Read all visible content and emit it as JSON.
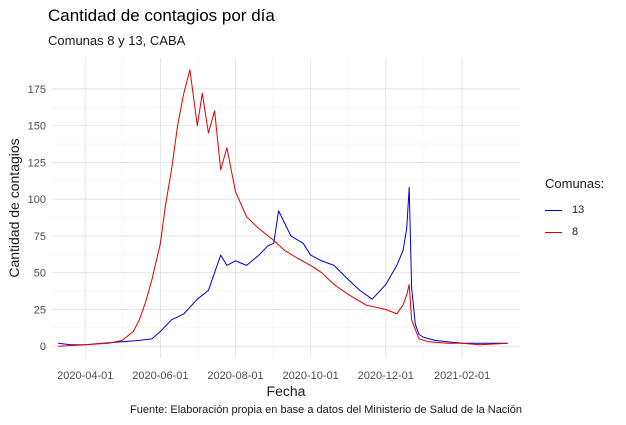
{
  "chart_data": {
    "type": "line",
    "title": "Cantidad de contagios por día",
    "subtitle": "Comunas 8 y 13, CABA",
    "xlabel": "Fecha",
    "ylabel": "Cantidad de contagios",
    "caption": "Fuente: Elaboración propia en base a datos del Ministerio de Salud de la Nación",
    "x_ticks": [
      "2020-04-01",
      "2020-06-01",
      "2020-08-01",
      "2020-10-01",
      "2020-12-01",
      "2021-02-01"
    ],
    "y_ticks": [
      0,
      25,
      50,
      75,
      100,
      125,
      150,
      175
    ],
    "xlim": [
      "2020-03-05",
      "2021-03-20"
    ],
    "ylim": [
      -8,
      196
    ],
    "grid": true,
    "legend": {
      "title": "Comunas:",
      "placement": "right"
    },
    "series": [
      {
        "name": "13",
        "color": "#0000cc",
        "dates": [
          "2020-03-10",
          "2020-03-20",
          "2020-04-01",
          "2020-04-15",
          "2020-05-01",
          "2020-05-15",
          "2020-05-25",
          "2020-06-01",
          "2020-06-10",
          "2020-06-20",
          "2020-07-01",
          "2020-07-10",
          "2020-07-15",
          "2020-07-20",
          "2020-07-25",
          "2020-08-01",
          "2020-08-10",
          "2020-08-20",
          "2020-08-27",
          "2020-09-01",
          "2020-09-05",
          "2020-09-15",
          "2020-09-25",
          "2020-10-01",
          "2020-10-10",
          "2020-10-20",
          "2020-11-01",
          "2020-11-10",
          "2020-11-20",
          "2020-12-01",
          "2020-12-10",
          "2020-12-15",
          "2020-12-18",
          "2020-12-20",
          "2020-12-22",
          "2020-12-25",
          "2020-12-28",
          "2021-01-01",
          "2021-01-10",
          "2021-01-20",
          "2021-02-01",
          "2021-02-15",
          "2021-03-01",
          "2021-03-10"
        ],
        "values": [
          2,
          1,
          1,
          2,
          3,
          4,
          5,
          10,
          18,
          22,
          32,
          38,
          50,
          62,
          55,
          58,
          55,
          62,
          68,
          70,
          92,
          75,
          70,
          62,
          58,
          55,
          45,
          38,
          32,
          42,
          55,
          65,
          80,
          108,
          40,
          15,
          8,
          6,
          4,
          3,
          2,
          2,
          2,
          2
        ]
      },
      {
        "name": "8",
        "color": "#dd0000",
        "dates": [
          "2020-03-10",
          "2020-04-01",
          "2020-04-20",
          "2020-05-01",
          "2020-05-10",
          "2020-05-15",
          "2020-05-20",
          "2020-05-25",
          "2020-06-01",
          "2020-06-05",
          "2020-06-10",
          "2020-06-15",
          "2020-06-20",
          "2020-06-25",
          "2020-07-01",
          "2020-07-05",
          "2020-07-10",
          "2020-07-15",
          "2020-07-20",
          "2020-07-25",
          "2020-08-01",
          "2020-08-10",
          "2020-08-20",
          "2020-09-01",
          "2020-09-10",
          "2020-09-20",
          "2020-10-01",
          "2020-10-10",
          "2020-10-20",
          "2020-11-01",
          "2020-11-15",
          "2020-12-01",
          "2020-12-10",
          "2020-12-15",
          "2020-12-18",
          "2020-12-20",
          "2020-12-22",
          "2020-12-28",
          "2021-01-05",
          "2021-01-20",
          "2021-02-01",
          "2021-02-15",
          "2021-03-10"
        ],
        "values": [
          0,
          1,
          2,
          4,
          10,
          18,
          30,
          45,
          70,
          95,
          120,
          150,
          172,
          188,
          150,
          172,
          145,
          160,
          120,
          135,
          105,
          88,
          80,
          72,
          65,
          60,
          55,
          50,
          42,
          35,
          28,
          25,
          22,
          28,
          35,
          42,
          18,
          5,
          3,
          2,
          2,
          1,
          2
        ]
      }
    ]
  }
}
